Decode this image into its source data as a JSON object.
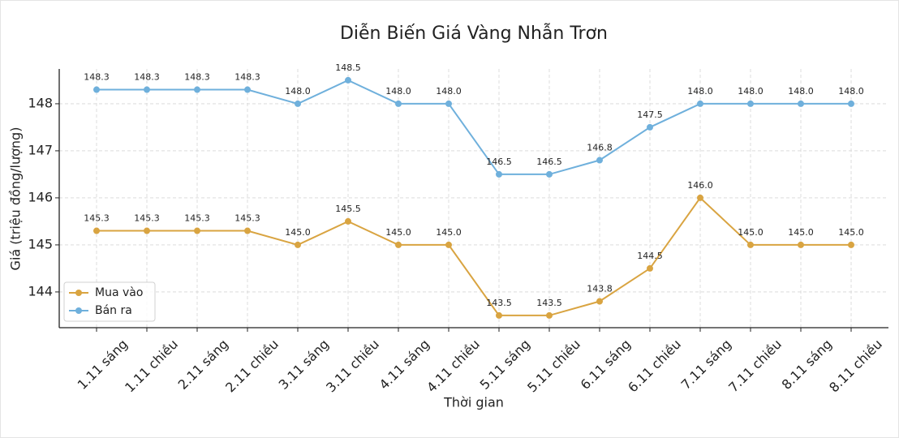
{
  "chart_data": {
    "type": "line",
    "title": "Diễn Biến Giá Vàng Nhẫn Trơn",
    "x_label": "Thời gian",
    "y_label": "Giá (triệu đồng/lượng)",
    "categories": [
      "1.11 sáng",
      "1.11 chiều",
      "2.11 sáng",
      "2.11 chiều",
      "3.11 sáng",
      "3.11 chiều",
      "4.11 sáng",
      "4.11 chiều",
      "5.11 sáng",
      "5.11 chiều",
      "6.11 sáng",
      "6.11 chiều",
      "7.11 sáng",
      "7.11 chiều",
      "8.11 sáng",
      "8.11 chiều"
    ],
    "series": [
      {
        "name": "Mua vào",
        "color": "#d9a441",
        "values": [
          145.3,
          145.3,
          145.3,
          145.3,
          145.0,
          145.5,
          145.0,
          145.0,
          143.5,
          143.5,
          143.8,
          144.5,
          146.0,
          145.0,
          145.0,
          145.0
        ],
        "value_labels": [
          "145.3",
          "145.3",
          "145.3",
          "145.3",
          "145.0",
          "145.5",
          "145.0",
          "145.0",
          "143.5",
          "143.5",
          "143.8",
          "144.5",
          "146.0",
          "145.0",
          "145.0",
          "145.0"
        ]
      },
      {
        "name": "Bán ra",
        "color": "#6fb0dc",
        "values": [
          148.3,
          148.3,
          148.3,
          148.3,
          148.0,
          148.5,
          148.0,
          148.0,
          146.5,
          146.5,
          146.8,
          147.5,
          148.0,
          148.0,
          148.0,
          148.0
        ],
        "value_labels": [
          "148.3",
          "148.3",
          "148.3",
          "148.3",
          "148.0",
          "148.5",
          "148.0",
          "148.0",
          "146.5",
          "146.5",
          "146.8",
          "147.5",
          "148.0",
          "148.0",
          "148.0",
          "148.0"
        ]
      }
    ],
    "ylim": [
      143.24,
      148.74
    ],
    "yticks": [
      144,
      145,
      146,
      147,
      148
    ],
    "grid": true,
    "legend": "lower left"
  }
}
